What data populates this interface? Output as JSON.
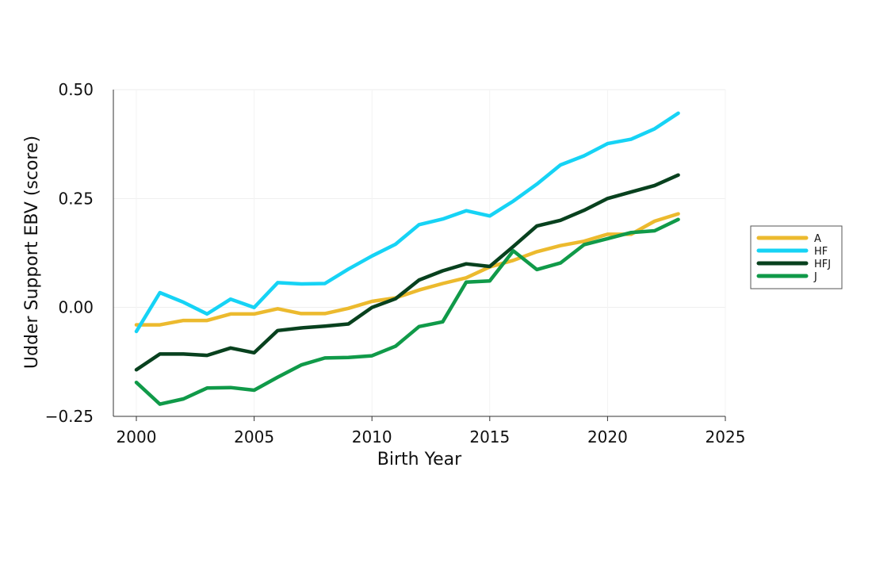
{
  "chart_data": {
    "type": "line",
    "title": "",
    "xlabel": "Birth Year",
    "ylabel": "Udder Support EBV (score)",
    "xlim": [
      2000,
      2025
    ],
    "ylim": [
      -0.25,
      0.5
    ],
    "x_ticks": [
      2000,
      2005,
      2010,
      2015,
      2020,
      2025
    ],
    "x_tick_labels": [
      "2000",
      "2005",
      "2010",
      "2015",
      "2020",
      "2025"
    ],
    "y_ticks": [
      -0.25,
      0,
      0.25,
      0.5
    ],
    "y_tick_labels": [
      "−0.25",
      "0.00",
      "0.25",
      "0.50"
    ],
    "grid": true,
    "legend_position": "right",
    "x": [
      2000,
      2001,
      2002,
      2003,
      2004,
      2005,
      2006,
      2007,
      2008,
      2009,
      2010,
      2011,
      2012,
      2013,
      2014,
      2015,
      2016,
      2017,
      2018,
      2019,
      2020,
      2021,
      2022,
      2023
    ],
    "series": [
      {
        "name": "A",
        "color": "#ECBA2E",
        "values": [
          -0.04,
          -0.04,
          -0.03,
          -0.03,
          -0.015,
          -0.015,
          -0.003,
          -0.014,
          -0.014,
          -0.002,
          0.014,
          0.022,
          0.04,
          0.055,
          0.068,
          0.093,
          0.108,
          0.128,
          0.142,
          0.152,
          0.168,
          0.168,
          0.198,
          0.215
        ]
      },
      {
        "name": "HF",
        "color": "#16D3F5",
        "values": [
          -0.055,
          0.034,
          0.012,
          -0.015,
          0.019,
          0.0,
          0.057,
          0.054,
          0.055,
          0.088,
          0.118,
          0.145,
          0.19,
          0.203,
          0.222,
          0.21,
          0.244,
          0.283,
          0.327,
          0.348,
          0.376,
          0.386,
          0.41,
          0.446
        ]
      },
      {
        "name": "HFJ",
        "color": "#08411E",
        "values": [
          -0.143,
          -0.107,
          -0.107,
          -0.11,
          -0.093,
          -0.104,
          -0.053,
          -0.047,
          -0.043,
          -0.038,
          0.0,
          0.02,
          0.063,
          0.084,
          0.1,
          0.094,
          0.14,
          0.187,
          0.2,
          0.223,
          0.25,
          0.265,
          0.28,
          0.304
        ]
      },
      {
        "name": "J",
        "color": "#109A49",
        "values": [
          -0.172,
          -0.222,
          -0.21,
          -0.185,
          -0.184,
          -0.19,
          -0.16,
          -0.132,
          -0.116,
          -0.115,
          -0.111,
          -0.089,
          -0.044,
          -0.033,
          0.058,
          0.061,
          0.13,
          0.087,
          0.102,
          0.144,
          0.158,
          0.172,
          0.176,
          0.202
        ]
      }
    ]
  }
}
